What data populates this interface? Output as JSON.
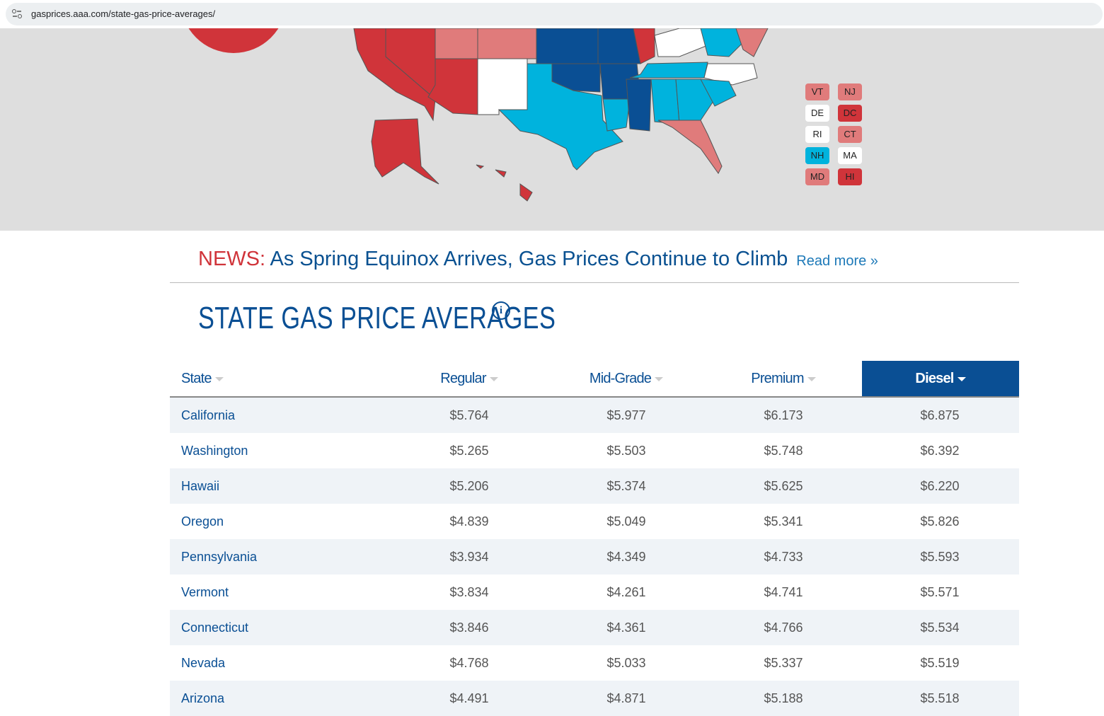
{
  "browser": {
    "url": "gasprices.aaa.com/state-gas-price-averages/"
  },
  "map": {
    "small_states": [
      {
        "label": "VT",
        "color": "#e07b7b"
      },
      {
        "label": "NJ",
        "color": "#e07b7b"
      },
      {
        "label": "DE",
        "color": "#ffffff"
      },
      {
        "label": "DC",
        "color": "#d0343a"
      },
      {
        "label": "RI",
        "color": "#ffffff"
      },
      {
        "label": "CT",
        "color": "#e07b7b"
      },
      {
        "label": "NH",
        "color": "#00b3dd"
      },
      {
        "label": "MA",
        "color": "#ffffff"
      },
      {
        "label": "MD",
        "color": "#e07b7b"
      },
      {
        "label": "HI",
        "color": "#d0343a"
      }
    ]
  },
  "news": {
    "label": "NEWS:",
    "headline": "As Spring Equinox Arrives, Gas Prices Continue to Climb",
    "link": "Read more »"
  },
  "section": {
    "title": "STATE GAS PRICE AVERAGES"
  },
  "table": {
    "columns": [
      "State",
      "Regular",
      "Mid-Grade",
      "Premium",
      "Diesel"
    ],
    "rows": [
      [
        "California",
        "$5.764",
        "$5.977",
        "$6.173",
        "$6.875"
      ],
      [
        "Washington",
        "$5.265",
        "$5.503",
        "$5.748",
        "$6.392"
      ],
      [
        "Hawaii",
        "$5.206",
        "$5.374",
        "$5.625",
        "$6.220"
      ],
      [
        "Oregon",
        "$4.839",
        "$5.049",
        "$5.341",
        "$5.826"
      ],
      [
        "Pennsylvania",
        "$3.934",
        "$4.349",
        "$4.733",
        "$5.593"
      ],
      [
        "Vermont",
        "$3.834",
        "$4.261",
        "$4.741",
        "$5.571"
      ],
      [
        "Connecticut",
        "$3.846",
        "$4.361",
        "$4.766",
        "$5.534"
      ],
      [
        "Nevada",
        "$4.768",
        "$5.033",
        "$5.337",
        "$5.519"
      ],
      [
        "Arizona",
        "$4.491",
        "$4.871",
        "$5.188",
        "$5.518"
      ]
    ]
  }
}
